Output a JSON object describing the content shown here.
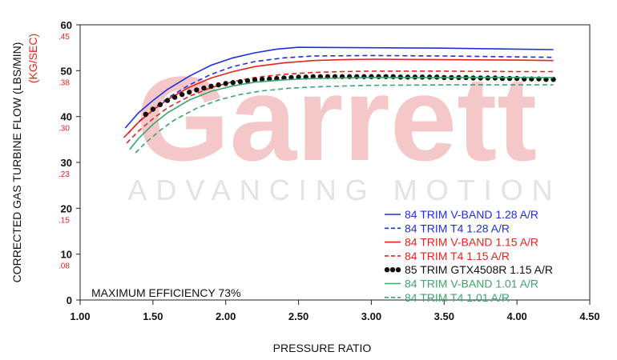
{
  "watermark": {
    "logo_text": "Garrett",
    "tagline": "ADVANCING MOTION"
  },
  "chart_data": {
    "type": "line",
    "title": "",
    "xlabel": "PRESSURE RATIO",
    "ylabel": "CORRECTED GAS TURBINE FLOW (LBS/MIN)",
    "ylabel_secondary": "(KG/SEC)",
    "xlim": [
      1.0,
      4.5
    ],
    "ylim": [
      0,
      60
    ],
    "x_ticks": [
      "1.00",
      "1.50",
      "2.00",
      "2.50",
      "3.00",
      "3.50",
      "4.00",
      "4.50"
    ],
    "x_tick_values": [
      1.0,
      1.5,
      2.0,
      2.5,
      3.0,
      3.5,
      4.0,
      4.5
    ],
    "y_ticks": [
      "0",
      "10",
      "20",
      "30",
      "40",
      "50",
      "60"
    ],
    "y_tick_values": [
      0,
      10,
      20,
      30,
      40,
      50,
      60
    ],
    "y_ticks_secondary": [
      ".08",
      ".15",
      ".23",
      ".30",
      ".38",
      ".45"
    ],
    "y_ticks_secondary_values": [
      10,
      20,
      30,
      40,
      50,
      60
    ],
    "grid": false,
    "legend_position": "bottom-right",
    "annotation": "MAXIMUM EFFICIENCY 73%",
    "colors": {
      "blue": "#1f2ee0",
      "red": "#e8231e",
      "black": "#111111",
      "green": "#3aa56e",
      "secondary_axis": "#e8231e"
    },
    "series": [
      {
        "name": "84 TRIM V-BAND 1.28 A/R",
        "color": "#1f2ee0",
        "style": "solid",
        "x": [
          1.31,
          1.4,
          1.5,
          1.6,
          1.75,
          1.9,
          2.05,
          2.2,
          2.35,
          2.5,
          3.0,
          3.5,
          4.0,
          4.25
        ],
        "y": [
          37.5,
          40.8,
          43.5,
          45.9,
          48.8,
          51.2,
          52.8,
          53.9,
          54.7,
          55.1,
          55.0,
          54.9,
          54.7,
          54.6
        ]
      },
      {
        "name": "84 TRIM T4 1.28 A/R",
        "color": "#1f2ee0",
        "style": "dashed",
        "x": [
          1.33,
          1.4,
          1.5,
          1.6,
          1.75,
          1.9,
          2.05,
          2.2,
          2.4,
          2.6,
          3.0,
          3.5,
          4.0,
          4.25
        ],
        "y": [
          36.3,
          38.8,
          41.6,
          44.0,
          46.9,
          49.2,
          50.9,
          52.0,
          52.8,
          53.2,
          53.3,
          53.2,
          53.0,
          52.9
        ]
      },
      {
        "name": "84 TRIM V-BAND 1.15 A/R",
        "color": "#e8231e",
        "style": "solid",
        "x": [
          1.3,
          1.4,
          1.5,
          1.6,
          1.75,
          1.9,
          2.05,
          2.2,
          2.4,
          2.6,
          2.8,
          3.0,
          3.5,
          4.0,
          4.25
        ],
        "y": [
          35.4,
          38.7,
          41.4,
          43.7,
          46.4,
          48.4,
          49.8,
          50.9,
          51.7,
          52.2,
          52.4,
          52.5,
          52.4,
          52.3,
          52.2
        ]
      },
      {
        "name": "84 TRIM T4 1.15 A/R",
        "color": "#e8231e",
        "style": "dashed",
        "x": [
          1.32,
          1.4,
          1.5,
          1.6,
          1.75,
          1.9,
          2.05,
          2.2,
          2.4,
          2.6,
          2.8,
          3.0,
          3.5,
          4.0,
          4.25
        ],
        "y": [
          34.2,
          36.8,
          39.5,
          41.9,
          44.4,
          46.3,
          47.6,
          48.5,
          49.2,
          49.6,
          49.8,
          49.9,
          49.9,
          49.8,
          49.8
        ]
      },
      {
        "name": "85 TRIM GTX4508R 1.15 A/R",
        "color": "#111111",
        "style": "dots",
        "x": [
          1.45,
          1.5,
          1.55,
          1.6,
          1.65,
          1.7,
          1.75,
          1.8,
          1.85,
          1.9,
          1.95,
          2.0,
          2.05,
          2.1,
          2.15,
          2.2,
          2.25,
          2.3,
          2.35,
          2.4,
          2.45,
          2.5,
          2.55,
          2.6,
          2.65,
          2.7,
          2.75,
          2.8,
          2.85,
          2.9,
          2.95,
          3.0,
          3.05,
          3.1,
          3.15,
          3.2,
          3.25,
          3.3,
          3.35,
          3.4,
          3.45,
          3.5,
          3.55,
          3.6,
          3.65,
          3.7,
          3.75,
          3.8,
          3.85,
          3.9,
          3.95,
          4.0,
          4.05,
          4.1,
          4.15,
          4.2,
          4.25
        ],
        "y": [
          40.5,
          41.6,
          42.6,
          43.5,
          44.2,
          44.8,
          45.3,
          45.8,
          46.2,
          46.6,
          46.9,
          47.2,
          47.4,
          47.6,
          47.8,
          48.0,
          48.1,
          48.2,
          48.3,
          48.4,
          48.5,
          48.6,
          48.6,
          48.7,
          48.7,
          48.7,
          48.7,
          48.7,
          48.7,
          48.7,
          48.7,
          48.7,
          48.7,
          48.7,
          48.7,
          48.6,
          48.6,
          48.6,
          48.6,
          48.6,
          48.6,
          48.5,
          48.5,
          48.5,
          48.5,
          48.4,
          48.4,
          48.4,
          48.4,
          48.3,
          48.3,
          48.3,
          48.2,
          48.2,
          48.2,
          48.1,
          48.1
        ]
      },
      {
        "name": "84 TRIM V-BAND 1.01 A/R",
        "color": "#3aa56e",
        "style": "solid",
        "x": [
          1.34,
          1.4,
          1.5,
          1.6,
          1.75,
          1.9,
          2.05,
          2.2,
          2.4,
          2.6,
          2.8,
          3.0,
          3.5,
          4.0,
          4.25
        ],
        "y": [
          32.8,
          35.2,
          38.3,
          40.8,
          43.6,
          45.5,
          46.7,
          47.5,
          48.0,
          48.3,
          48.4,
          48.5,
          48.5,
          48.5,
          48.5
        ]
      },
      {
        "name": "84 TRIM T4 1.01 A/R",
        "color": "#3aa56e",
        "style": "dashed",
        "x": [
          1.38,
          1.45,
          1.55,
          1.65,
          1.8,
          1.95,
          2.1,
          2.25,
          2.45,
          2.65,
          2.85,
          3.0,
          3.5,
          4.0,
          4.25
        ],
        "y": [
          32.1,
          34.3,
          37.0,
          39.3,
          41.8,
          43.6,
          44.8,
          45.6,
          46.2,
          46.5,
          46.7,
          46.8,
          46.9,
          46.9,
          46.9
        ]
      }
    ]
  }
}
